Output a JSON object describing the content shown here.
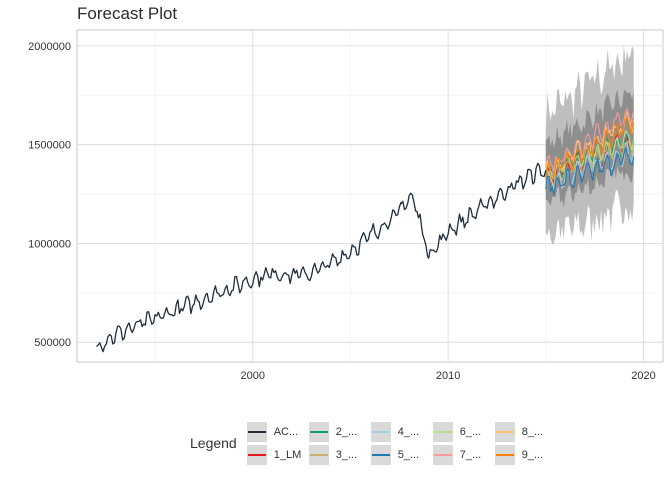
{
  "chart_data": {
    "type": "line",
    "title": "Forecast Plot",
    "xlabel": "",
    "ylabel": "",
    "xlim": [
      1991,
      2021
    ],
    "ylim": [
      400000,
      2080000
    ],
    "x_ticks": [
      2000,
      2010,
      2020
    ],
    "x_tick_labels": [
      "2000",
      "2010",
      "2020"
    ],
    "y_ticks": [
      500000,
      1000000,
      1500000,
      2000000
    ],
    "y_tick_labels": [
      "500000",
      "1000000",
      "1500000",
      "2000000"
    ],
    "grid": true,
    "legend_position": "bottom",
    "legend_title": "Legend",
    "actual_series": {
      "name": "AC...",
      "color": "#1f2d3d",
      "x": [
        1992.0,
        1993.0,
        1994.0,
        1995.0,
        1996.0,
        1997.0,
        1998.0,
        1999.0,
        2000.0,
        2001.0,
        2002.0,
        2003.0,
        2004.0,
        2005.0,
        2006.0,
        2007.0,
        2007.6,
        2008.0,
        2008.4,
        2008.7,
        2009.0,
        2009.4,
        2010.0,
        2011.0,
        2012.0,
        2013.0,
        2014.0,
        2014.5,
        2015.0
      ],
      "y": [
        480000,
        540000,
        580000,
        620000,
        660000,
        700000,
        740000,
        780000,
        820000,
        850000,
        840000,
        850000,
        900000,
        960000,
        1040000,
        1120000,
        1170000,
        1240000,
        1180000,
        1050000,
        950000,
        980000,
        1060000,
        1130000,
        1200000,
        1270000,
        1330000,
        1360000,
        1370000
      ]
    },
    "forecast_x": [
      2015.0,
      2015.5,
      2016.0,
      2016.5,
      2017.0,
      2017.5,
      2018.0,
      2018.5,
      2019.0,
      2019.5
    ],
    "forecast_band": {
      "name": "Prediction interval",
      "outer_lower": [
        1050000,
        1060000,
        1070000,
        1080000,
        1100000,
        1120000,
        1140000,
        1160000,
        1180000,
        1200000
      ],
      "outer_upper": [
        1650000,
        1690000,
        1720000,
        1750000,
        1790000,
        1830000,
        1860000,
        1900000,
        1940000,
        1980000
      ],
      "inner_lower": [
        1200000,
        1220000,
        1240000,
        1260000,
        1280000,
        1300000,
        1320000,
        1340000,
        1360000,
        1380000
      ],
      "inner_upper": [
        1500000,
        1530000,
        1560000,
        1590000,
        1620000,
        1650000,
        1680000,
        1710000,
        1740000,
        1770000
      ]
    },
    "series": [
      {
        "name": "1_LM",
        "color": "#e41a1c",
        "values": [
          1330000,
          1360000,
          1380000,
          1400000,
          1420000,
          1440000,
          1460000,
          1480000,
          1500000,
          1510000
        ]
      },
      {
        "name": "2_...",
        "color": "#1b9e77",
        "values": [
          1340000,
          1370000,
          1390000,
          1410000,
          1430000,
          1450000,
          1470000,
          1490000,
          1510000,
          1520000
        ]
      },
      {
        "name": "3_...",
        "color": "#c8b273",
        "values": [
          1320000,
          1350000,
          1370000,
          1390000,
          1410000,
          1430000,
          1450000,
          1470000,
          1490000,
          1500000
        ]
      },
      {
        "name": "4_...",
        "color": "#a6cee3",
        "values": [
          1300000,
          1320000,
          1340000,
          1360000,
          1380000,
          1400000,
          1420000,
          1440000,
          1450000,
          1460000
        ]
      },
      {
        "name": "5_...",
        "color": "#1f78b4",
        "values": [
          1280000,
          1300000,
          1320000,
          1330000,
          1350000,
          1370000,
          1390000,
          1410000,
          1430000,
          1440000
        ]
      },
      {
        "name": "6_...",
        "color": "#b2df8a",
        "values": [
          1350000,
          1380000,
          1400000,
          1420000,
          1440000,
          1460000,
          1480000,
          1500000,
          1520000,
          1530000
        ]
      },
      {
        "name": "7_...",
        "color": "#fb9a99",
        "values": [
          1380000,
          1410000,
          1440000,
          1470000,
          1500000,
          1540000,
          1570000,
          1600000,
          1640000,
          1670000
        ]
      },
      {
        "name": "8_...",
        "color": "#fdbf6f",
        "values": [
          1360000,
          1390000,
          1420000,
          1450000,
          1480000,
          1510000,
          1540000,
          1570000,
          1600000,
          1630000
        ]
      },
      {
        "name": "9_...",
        "color": "#ff7f00",
        "values": [
          1350000,
          1380000,
          1410000,
          1430000,
          1460000,
          1490000,
          1520000,
          1550000,
          1580000,
          1610000
        ]
      }
    ]
  }
}
